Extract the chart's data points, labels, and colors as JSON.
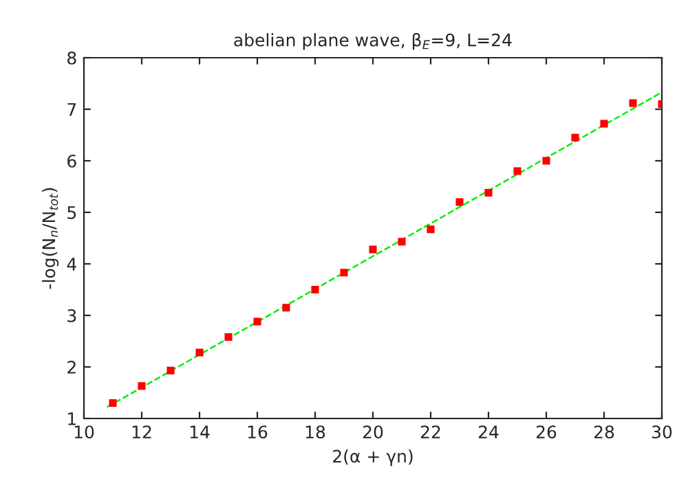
{
  "chart_data": {
    "type": "scatter",
    "title": "abelian plane wave, β$_{E}$=9, L=24",
    "xlabel": "2(α + γn)",
    "ylabel": "-log(N$_{n}$/N$_{tot}$)",
    "x": [
      11,
      12,
      13,
      14,
      15,
      16,
      17,
      18,
      19,
      20,
      21,
      22,
      23,
      24,
      25,
      26,
      27,
      28,
      29,
      30
    ],
    "series": [
      {
        "color": "#ff0000",
        "marker": "square",
        "values": [
          1.3,
          1.63,
          1.93,
          2.28,
          2.58,
          2.88,
          3.15,
          3.5,
          3.83,
          4.28,
          4.43,
          4.67,
          5.2,
          5.38,
          5.8,
          6.0,
          6.45,
          6.72,
          7.12,
          7.1
        ]
      },
      {
        "type": "line",
        "color": "#00ee00",
        "line_style": "dashed",
        "marker": "none",
        "x": [
          10.8,
          30
        ],
        "values": [
          1.22,
          7.33
        ]
      }
    ],
    "xlim": [
      10,
      30
    ],
    "ylim": [
      1,
      8
    ],
    "xticks": [
      10,
      12,
      14,
      16,
      18,
      20,
      22,
      24,
      26,
      28,
      30
    ],
    "yticks": [
      1,
      2,
      3,
      4,
      5,
      6,
      7,
      8
    ],
    "grid": false,
    "legend": false
  }
}
